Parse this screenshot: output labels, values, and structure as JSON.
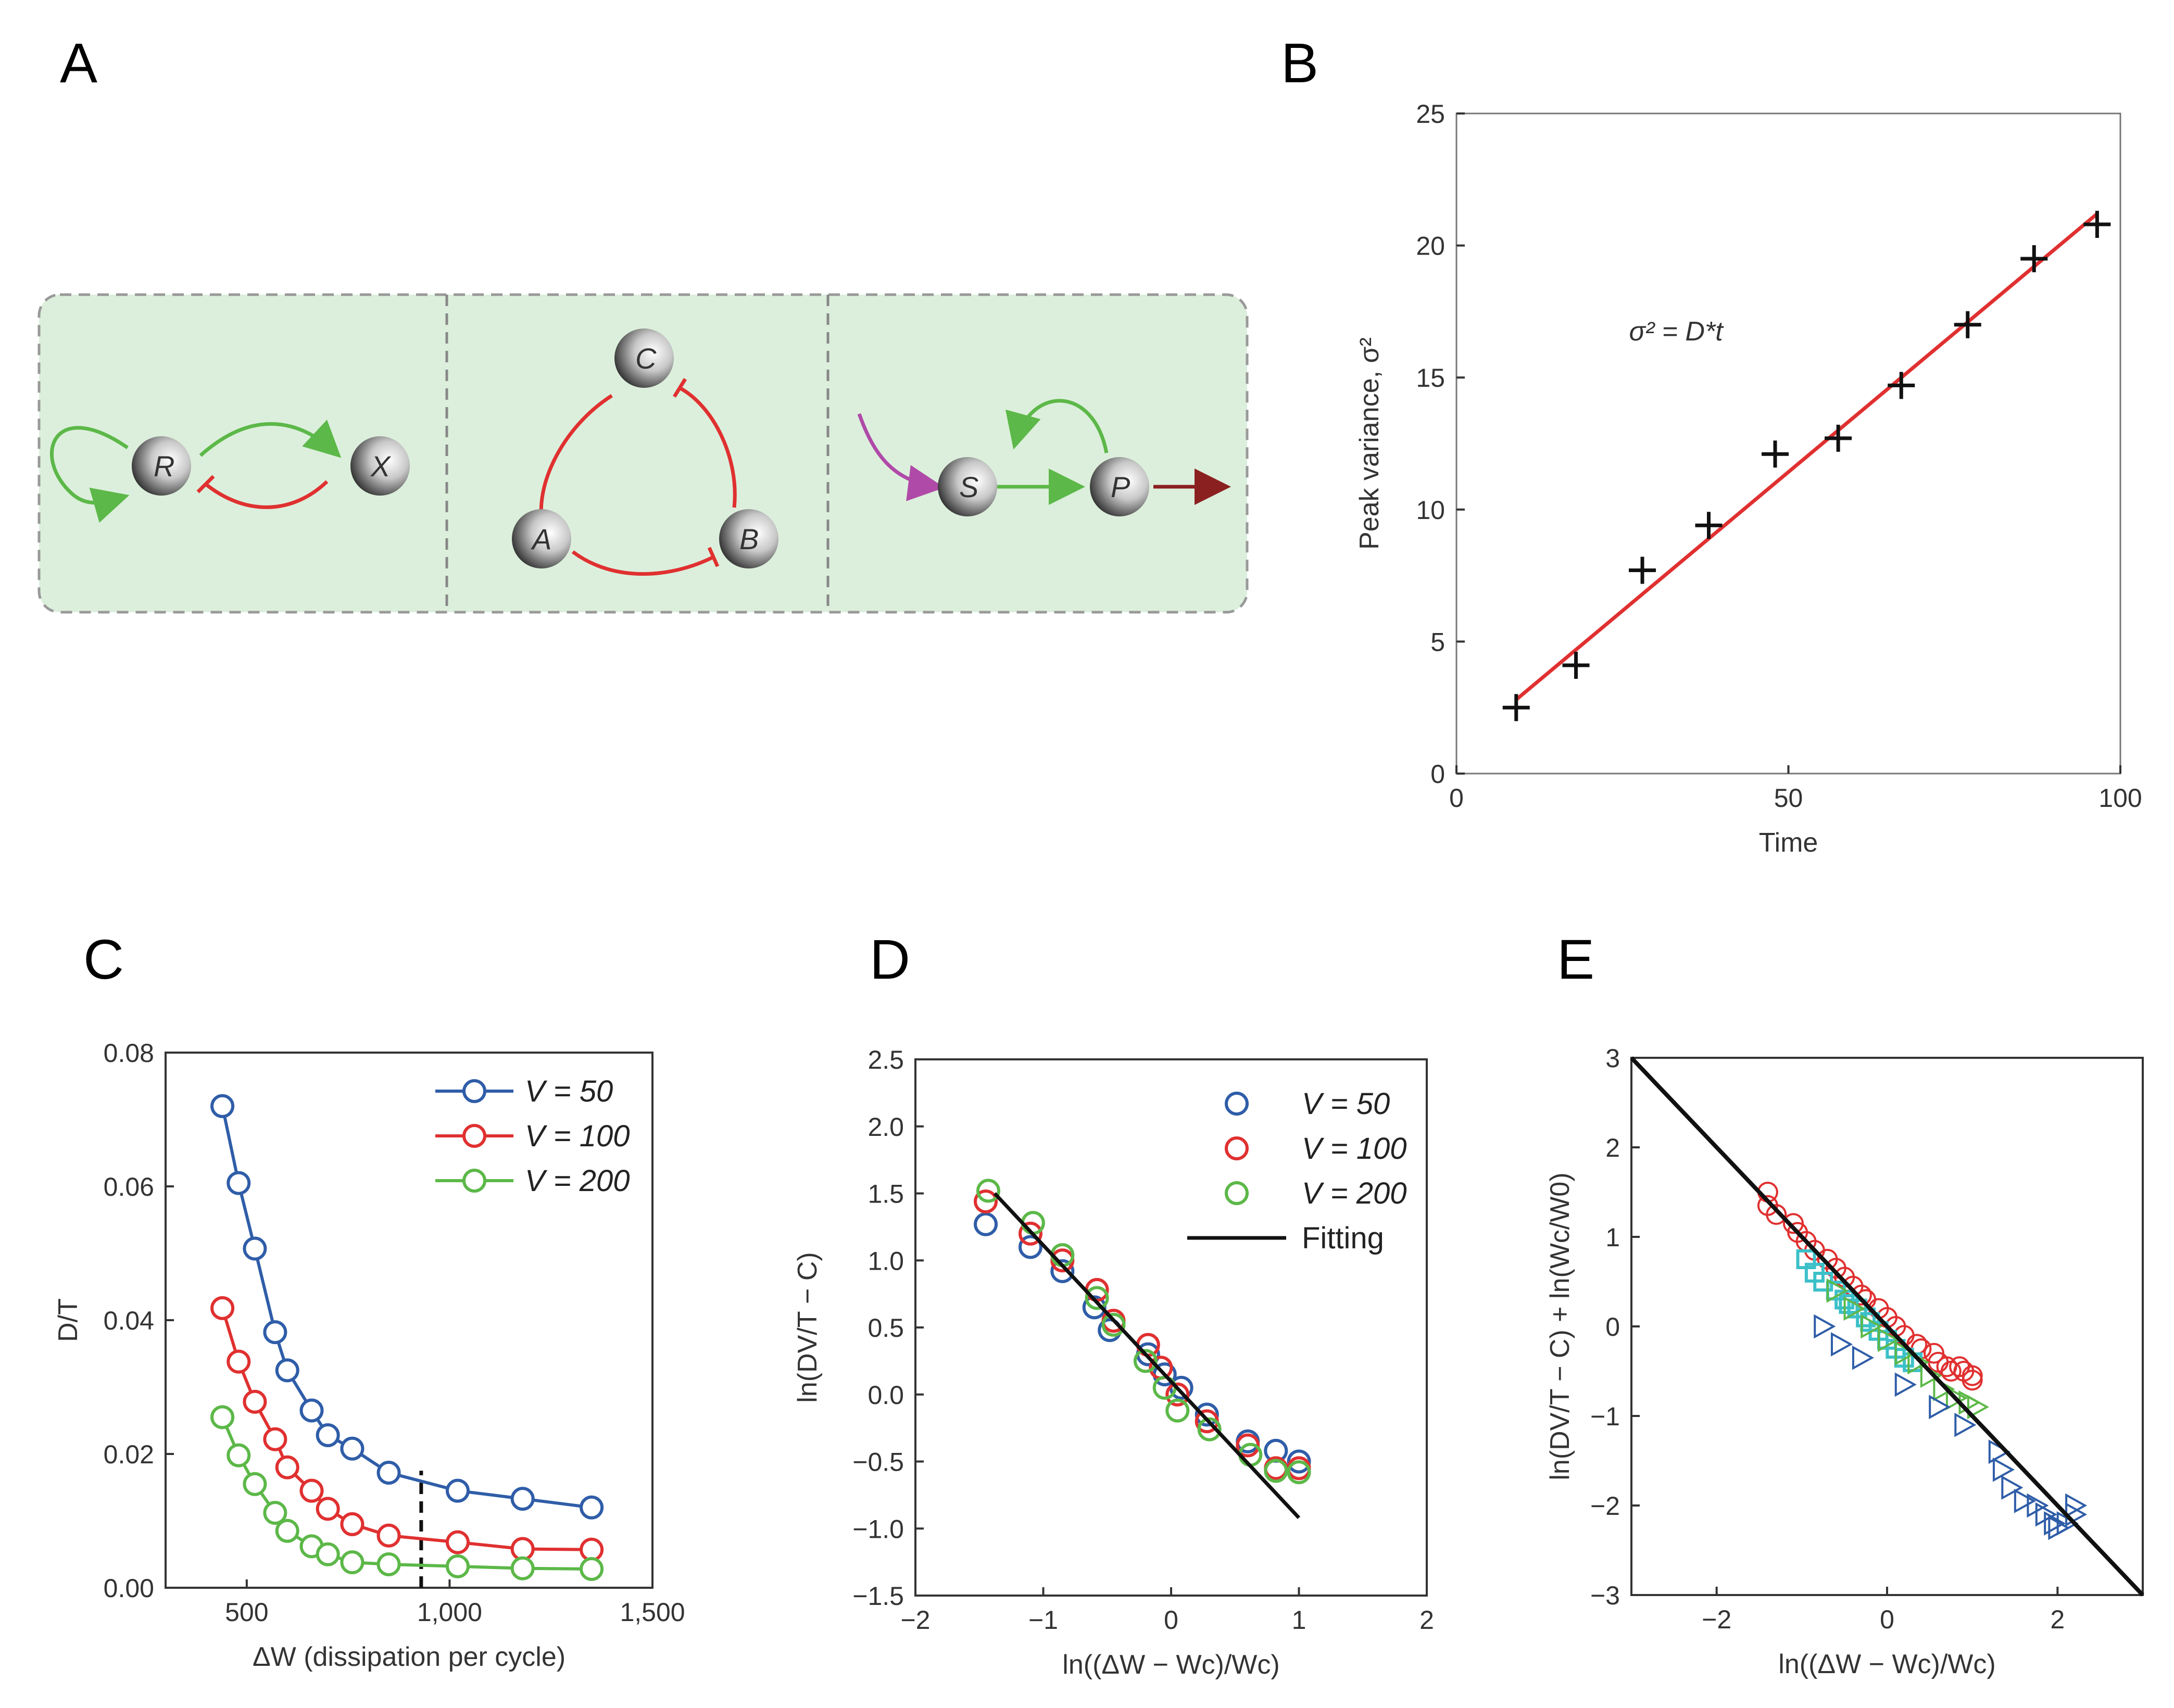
{
  "panel_labels": {
    "a": "A",
    "b": "B",
    "c": "C",
    "d": "D",
    "e": "E"
  },
  "colors": {
    "blue": "#2f5da8",
    "red": "#e03030",
    "green": "#5cb848",
    "cyan": "#3cc0c8",
    "black": "#111111",
    "panel_bg": "#dcefdc",
    "purple": "#b04aa8",
    "darkred": "#8b2020"
  },
  "network": {
    "nodes": [
      {
        "label": "R"
      },
      {
        "label": "X"
      },
      {
        "label": "C"
      },
      {
        "label": "A"
      },
      {
        "label": "B"
      },
      {
        "label": "S"
      },
      {
        "label": "P"
      }
    ]
  },
  "chart_data": [
    {
      "id": "B",
      "type": "scatter",
      "xlabel": "Time",
      "ylabel": "Peak variance, σ²",
      "annotation": "σ² = D*t",
      "xlim": [
        0,
        100
      ],
      "ylim": [
        0,
        25
      ],
      "xticks": [
        "0",
        "50",
        "100"
      ],
      "xtick_values": [
        0,
        50,
        100
      ],
      "yticks": [
        "0",
        "5",
        "10",
        "15",
        "20",
        "25"
      ],
      "ytick_values": [
        0,
        5,
        10,
        15,
        20,
        25
      ],
      "points": {
        "x": [
          9,
          18,
          28,
          38,
          48,
          57.5,
          67,
          77,
          87,
          96.5
        ],
        "y": [
          2.5,
          4.1,
          7.7,
          9.4,
          12.1,
          12.7,
          14.7,
          17.0,
          19.5,
          20.8
        ]
      },
      "fit": {
        "x": [
          9,
          96.5
        ],
        "y": [
          2.8,
          21.2
        ]
      }
    },
    {
      "id": "C",
      "type": "line",
      "xlabel": "ΔW (dissipation per cycle)",
      "ylabel": "D/T",
      "xlim": [
        300,
        1500
      ],
      "ylim": [
        0,
        0.08
      ],
      "xticks": [
        "500",
        "1,000",
        "1,500"
      ],
      "xtick_values": [
        500,
        1000,
        1500
      ],
      "yticks": [
        "0.00",
        "0.02",
        "0.04",
        "0.06",
        "0.08"
      ],
      "ytick_values": [
        0,
        0.02,
        0.04,
        0.06,
        0.08
      ],
      "vline": 930,
      "x": [
        440,
        480,
        520,
        570,
        600,
        660,
        700,
        760,
        850,
        1020,
        1180,
        1350
      ],
      "series": [
        {
          "name": "V = 50",
          "color": "#2f5da8",
          "values": [
            0.072,
            0.0605,
            0.0507,
            0.0382,
            0.0325,
            0.0265,
            0.0228,
            0.0208,
            0.0172,
            0.0145,
            0.0133,
            0.012
          ]
        },
        {
          "name": "V = 100",
          "color": "#e03030",
          "values": [
            0.0418,
            0.0338,
            0.0278,
            0.0222,
            0.018,
            0.0145,
            0.0118,
            0.0095,
            0.0078,
            0.0068,
            0.0058,
            0.0057
          ]
        },
        {
          "name": "V = 200",
          "color": "#5cb848",
          "values": [
            0.0255,
            0.0198,
            0.0155,
            0.0112,
            0.0085,
            0.0062,
            0.005,
            0.0038,
            0.0035,
            0.0032,
            0.0029,
            0.0028
          ]
        }
      ]
    },
    {
      "id": "D",
      "type": "scatter",
      "xlabel": "ln((ΔW − Wc)/Wc)",
      "ylabel": "ln(DV/T − C)",
      "xlim": [
        -2,
        2
      ],
      "ylim": [
        -1.5,
        2.5
      ],
      "xticks": [
        "−2",
        "−1",
        "0",
        "1",
        "2"
      ],
      "xtick_values": [
        -2,
        -1,
        0,
        1,
        2
      ],
      "yticks": [
        "−1.5",
        "−1.0",
        "−0.5",
        "0.0",
        "0.5",
        "1.0",
        "1.5",
        "2.0",
        "2.5"
      ],
      "ytick_values": [
        -1.5,
        -1,
        -0.5,
        0,
        0.5,
        1,
        1.5,
        2,
        2.5
      ],
      "fit_label": "Fitting",
      "fit": {
        "x": [
          -1.38,
          1.0
        ],
        "y": [
          1.5,
          -0.92
        ]
      },
      "series": [
        {
          "name": "V = 50",
          "color": "#2f5da8",
          "x": [
            -1.45,
            -1.1,
            -0.85,
            -0.6,
            -0.48,
            -0.18,
            -0.05,
            0.08,
            0.28,
            0.6,
            0.82,
            1.0
          ],
          "y": [
            1.27,
            1.1,
            0.92,
            0.65,
            0.48,
            0.3,
            0.15,
            0.05,
            -0.15,
            -0.35,
            -0.42,
            -0.5
          ]
        },
        {
          "name": "V = 100",
          "color": "#e03030",
          "x": [
            -1.45,
            -1.1,
            -0.85,
            -0.58,
            -0.45,
            -0.18,
            -0.08,
            0.05,
            0.28,
            0.6,
            0.82,
            1.0
          ],
          "y": [
            1.44,
            1.2,
            1.0,
            0.78,
            0.55,
            0.37,
            0.2,
            0.0,
            -0.2,
            -0.38,
            -0.55,
            -0.55
          ]
        },
        {
          "name": "V = 200",
          "color": "#5cb848",
          "x": [
            -1.43,
            -1.08,
            -0.85,
            -0.58,
            -0.45,
            -0.2,
            -0.05,
            0.05,
            0.3,
            0.62,
            0.82,
            1.0
          ],
          "y": [
            1.52,
            1.28,
            1.04,
            0.72,
            0.52,
            0.25,
            0.05,
            -0.12,
            -0.26,
            -0.45,
            -0.57,
            -0.58
          ]
        }
      ]
    },
    {
      "id": "E",
      "type": "scatter",
      "xlabel": "ln((ΔW − Wc)/Wc)",
      "ylabel": "ln(DV/T − C) + ln(Wc/W0)",
      "xlim": [
        -3,
        3
      ],
      "ylim": [
        -3,
        3
      ],
      "xticks": [
        "−2",
        "0",
        "2"
      ],
      "xtick_values": [
        -2,
        0,
        2
      ],
      "yticks": [
        "−3",
        "−2",
        "−1",
        "0",
        "1",
        "2",
        "3"
      ],
      "ytick_values": [
        -3,
        -2,
        -1,
        0,
        1,
        2,
        3
      ],
      "fit": {
        "x": [
          -3,
          3
        ],
        "y": [
          3,
          -3
        ]
      },
      "series": [
        {
          "name": "circles",
          "marker": "circle",
          "color": "#e03030",
          "x": [
            -1.4,
            -1.4,
            -1.3,
            -1.1,
            -1.05,
            -0.95,
            -0.85,
            -0.7,
            -0.6,
            -0.5,
            -0.4,
            -0.3,
            -0.25,
            -0.1,
            0.0,
            0.1,
            0.2,
            0.35,
            0.4,
            0.55,
            0.6,
            0.7,
            0.75,
            0.85,
            0.9,
            1.0,
            1.0
          ],
          "y": [
            1.5,
            1.35,
            1.25,
            1.15,
            1.05,
            0.95,
            0.85,
            0.75,
            0.65,
            0.55,
            0.45,
            0.35,
            0.3,
            0.2,
            0.1,
            0.0,
            -0.1,
            -0.2,
            -0.25,
            -0.3,
            -0.4,
            -0.45,
            -0.5,
            -0.45,
            -0.5,
            -0.55,
            -0.6
          ]
        },
        {
          "name": "squares",
          "marker": "square",
          "color": "#3cc0c8",
          "x": [
            -0.95,
            -0.85,
            -0.75,
            -0.6,
            -0.5,
            -0.45,
            -0.35,
            -0.25,
            -0.2,
            -0.1,
            0.0,
            0.1,
            0.2,
            0.3
          ],
          "y": [
            0.75,
            0.6,
            0.5,
            0.4,
            0.3,
            0.25,
            0.2,
            0.1,
            0.05,
            -0.05,
            -0.15,
            -0.25,
            -0.35,
            -0.4
          ]
        },
        {
          "name": "triangles-green",
          "marker": "triangle",
          "color": "#5cb848",
          "x": [
            -0.6,
            -0.4,
            -0.2,
            0.0,
            0.2,
            0.35,
            0.5,
            0.65,
            0.8,
            0.95,
            1.05
          ],
          "y": [
            0.4,
            0.2,
            0.0,
            -0.15,
            -0.3,
            -0.4,
            -0.55,
            -0.7,
            -0.8,
            -0.85,
            -0.9
          ]
        },
        {
          "name": "triangles-blue",
          "marker": "triangle",
          "color": "#2f5da8",
          "x": [
            -0.75,
            -0.55,
            -0.3,
            0.2,
            0.6,
            0.9,
            1.3,
            1.35,
            1.45,
            1.6,
            1.75,
            1.85,
            1.95,
            2.0,
            2.1,
            2.2,
            2.2
          ],
          "y": [
            0.0,
            -0.2,
            -0.35,
            -0.65,
            -0.9,
            -1.1,
            -1.4,
            -1.6,
            -1.8,
            -1.95,
            -2.0,
            -2.1,
            -2.2,
            -2.25,
            -2.2,
            -2.0,
            -2.1
          ]
        }
      ]
    }
  ]
}
